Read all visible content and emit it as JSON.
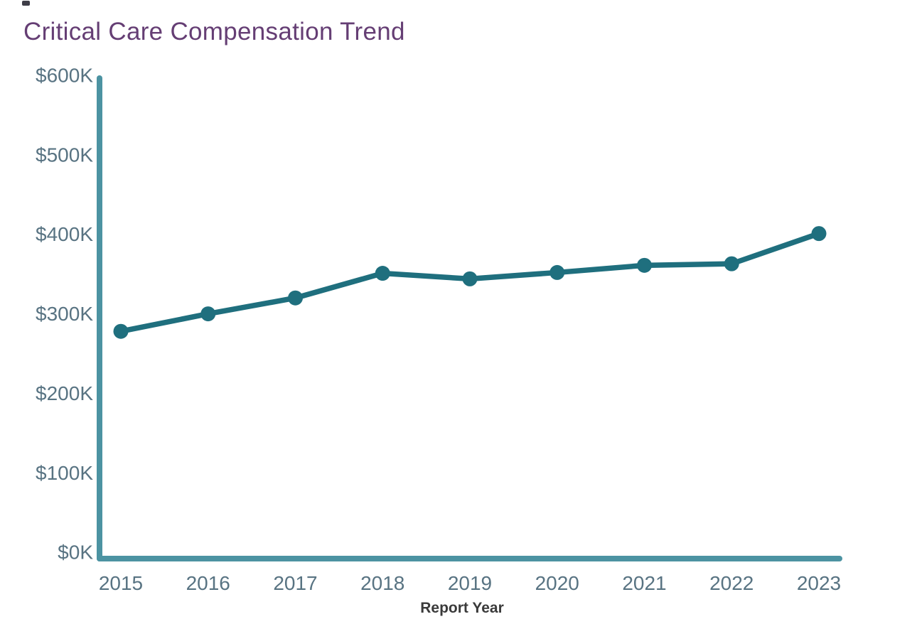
{
  "chart_data": {
    "type": "line",
    "title": "Critical Care Compensation Trend",
    "xlabel": "Report Year",
    "ylabel": "",
    "x": [
      2015,
      2016,
      2017,
      2018,
      2019,
      2020,
      2021,
      2022,
      2023
    ],
    "values_usd_k": [
      278,
      300,
      320,
      351,
      344,
      352,
      361,
      363,
      401
    ],
    "ylim": [
      0,
      600
    ],
    "ytick_values": [
      0,
      100,
      200,
      300,
      400,
      500,
      600
    ],
    "ytick_labels": [
      "$0K",
      "$100K",
      "$200K",
      "$300K",
      "$400K",
      "$500K",
      "$600K"
    ],
    "grid": false,
    "legend": "none",
    "marker": "circle",
    "colors": {
      "line": "#1f6f7e",
      "marker": "#1f6f7e",
      "axis": "#4c93a2",
      "tick_labels": "#587382",
      "title": "#653e74",
      "xlabel": "#3a3a3a",
      "background": "#ffffff"
    }
  }
}
